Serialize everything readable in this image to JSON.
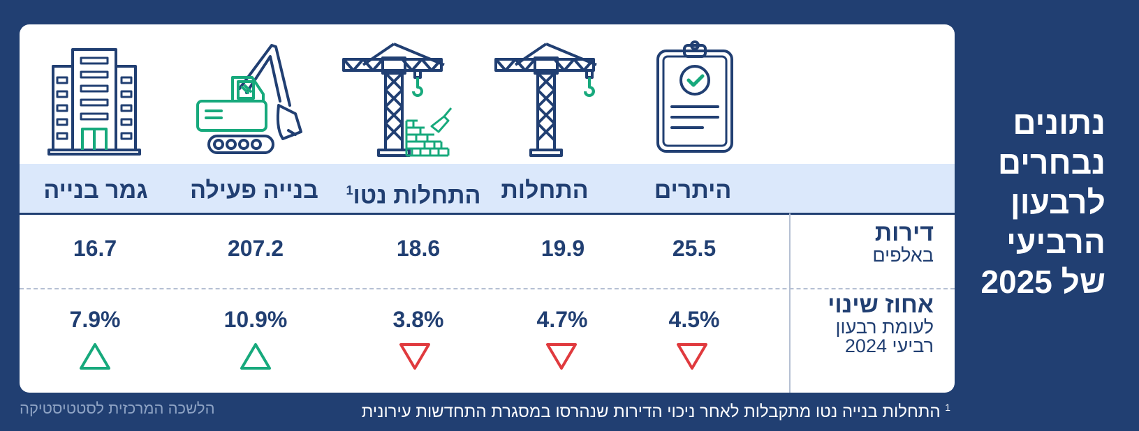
{
  "side_title": {
    "line1": "נתונים",
    "line2": "נבחרים",
    "line3": "לרבעון",
    "line4": "הרביעי",
    "line5": "של 2025"
  },
  "columns": [
    {
      "head": "היתרים",
      "sup": "",
      "value": "25.5",
      "pct": "4.5%",
      "direction": "down",
      "icon": "clipboard-check-icon"
    },
    {
      "head": "התחלות",
      "sup": "",
      "value": "19.9",
      "pct": "4.7%",
      "direction": "down",
      "icon": "tower-crane-icon"
    },
    {
      "head": "התחלות נטו",
      "sup": "1",
      "value": "18.6",
      "pct": "3.8%",
      "direction": "down",
      "icon": "crane-bricks-icon"
    },
    {
      "head": "בנייה פעילה",
      "sup": "",
      "value": "207.2",
      "pct": "10.9%",
      "direction": "up",
      "icon": "excavator-icon"
    },
    {
      "head": "גמר בנייה",
      "sup": "",
      "value": "16.7",
      "pct": "7.9%",
      "direction": "up",
      "icon": "building-icon"
    }
  ],
  "row_labels": {
    "dwellings_main": "דירות",
    "dwellings_sub": "באלפים",
    "change_main": "אחוז שינוי",
    "change_sub1": "לעומת רבעון",
    "change_sub2": "רביעי 2024"
  },
  "footnote": {
    "marker": "1",
    "text": "התחלות בנייה נטו מתקבלות לאחר ניכוי הדירות שנהרסו במסגרת התחדשות עירונית"
  },
  "source": "הלשכה המרכזית לסטטיסטיקה",
  "colors": {
    "navy": "#213f72",
    "green": "#17a97c",
    "red": "#e03a3e",
    "band": "#dbe8fb"
  }
}
